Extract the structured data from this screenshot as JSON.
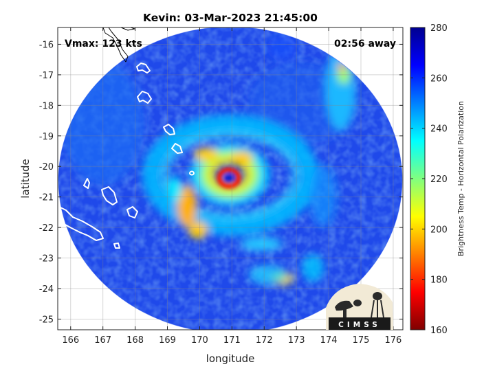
{
  "chart_data": {
    "type": "heatmap",
    "title": "Kevin: 03-Mar-2023 21:45:00",
    "xlabel": "longitude",
    "ylabel": "latitude",
    "xlim": [
      165.6,
      176.3
    ],
    "ylim": [
      -25.35,
      -15.45
    ],
    "x_ticks": [
      166,
      167,
      168,
      169,
      170,
      171,
      172,
      173,
      174,
      175,
      176
    ],
    "y_ticks": [
      -16,
      -17,
      -18,
      -19,
      -20,
      -21,
      -22,
      -23,
      -24,
      -25
    ],
    "grid": true,
    "annotations": {
      "vmax": "Vmax: 123 kts",
      "time_away": "02:56 away"
    },
    "storm_center": {
      "lon": 171.05,
      "lat": -20.35
    },
    "swath": {
      "center_lon": 170.95,
      "center_lat": -20.4,
      "radius_lon": 5.65,
      "radius_lat": 5.05
    },
    "colorbar": {
      "label": "Brightness Temp - Horizontal Polarization",
      "min": 160,
      "max": 280,
      "ticks": [
        160,
        180,
        200,
        220,
        240,
        260,
        280
      ],
      "colormap": [
        "#7f0000",
        "#ff0000",
        "#ff8000",
        "#ffff00",
        "#80ff80",
        "#00ffff",
        "#0080ff",
        "#0000ff",
        "#00008f"
      ]
    },
    "logo_text": "CIMSS"
  }
}
